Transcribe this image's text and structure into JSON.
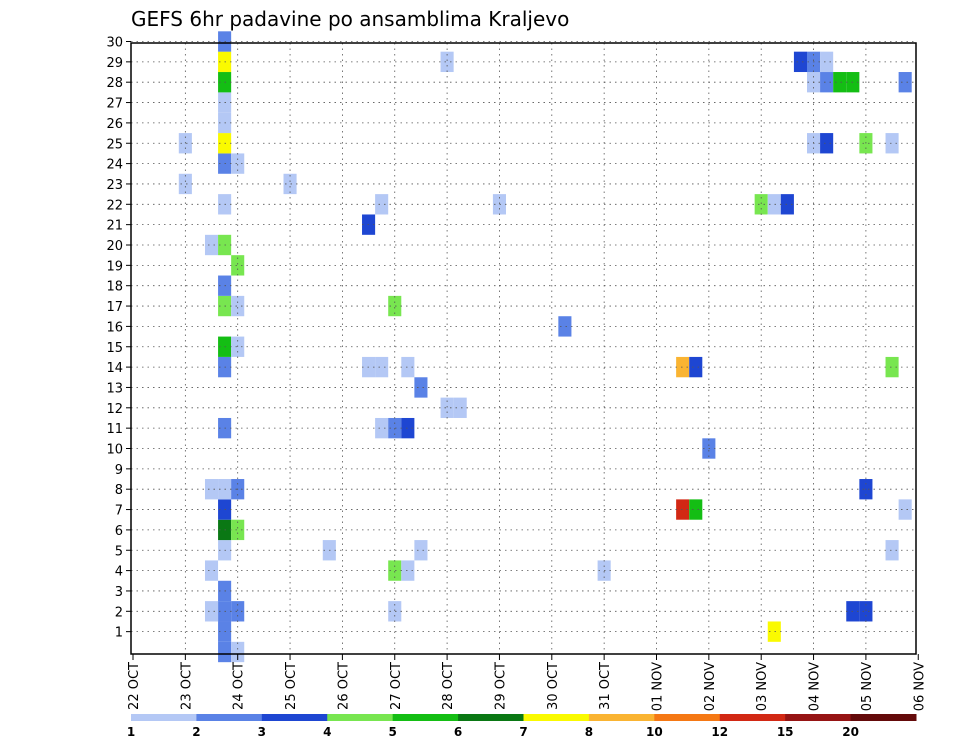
{
  "chart_data": {
    "type": "heatmap",
    "title": "GEFS 6hr padavine po ansamblima Kraljevo",
    "x_ticks": [
      "22 OCT",
      "23 OCT",
      "24 OCT",
      "25 OCT",
      "26 OCT",
      "27 OCT",
      "28 OCT",
      "29 OCT",
      "30 OCT",
      "31 OCT",
      "01 NOV",
      "02 NOV",
      "03 NOV",
      "04 NOV",
      "05 NOV",
      "06 NOV"
    ],
    "x_range_days": [
      0,
      15
    ],
    "y_ticks": [
      "1",
      "2",
      "3",
      "4",
      "5",
      "6",
      "7",
      "8",
      "9",
      "10",
      "11",
      "12",
      "13",
      "14",
      "15",
      "16",
      "17",
      "18",
      "19",
      "20",
      "21",
      "22",
      "23",
      "24",
      "25",
      "26",
      "27",
      "28",
      "29",
      "30"
    ],
    "y_range": [
      0,
      30
    ],
    "grid": true,
    "colorbar": {
      "placement": "bottom",
      "labels": [
        "1",
        "2",
        "3",
        "4",
        "5",
        "6",
        "7",
        "8",
        "10",
        "12",
        "15",
        "20"
      ],
      "colors": [
        "#b4c8f5",
        "#5a82e6",
        "#1e46d2",
        "#78e650",
        "#14be14",
        "#0a7814",
        "#fafa00",
        "#fab432",
        "#f57814",
        "#d22814",
        "#961414",
        "#640a0a"
      ]
    },
    "cells": [
      {
        "day": 1.75,
        "member": 0,
        "c": 2
      },
      {
        "day": 2.0,
        "member": 0,
        "c": 1
      },
      {
        "day": 1.75,
        "member": 1,
        "c": 2
      },
      {
        "day": 1.75,
        "member": 2,
        "c": 2
      },
      {
        "day": 1.5,
        "member": 2,
        "c": 1
      },
      {
        "day": 2.0,
        "member": 2,
        "c": 2
      },
      {
        "day": 1.75,
        "member": 3,
        "c": 2
      },
      {
        "day": 1.5,
        "member": 4,
        "c": 1
      },
      {
        "day": 1.75,
        "member": 5,
        "c": 1
      },
      {
        "day": 1.75,
        "member": 6,
        "c": 6
      },
      {
        "day": 2.0,
        "member": 6,
        "c": 4
      },
      {
        "day": 1.75,
        "member": 7,
        "c": 3
      },
      {
        "day": 1.5,
        "member": 8,
        "c": 1
      },
      {
        "day": 1.75,
        "member": 8,
        "c": 1
      },
      {
        "day": 2.0,
        "member": 8,
        "c": 2
      },
      {
        "day": 1.75,
        "member": 11,
        "c": 2
      },
      {
        "day": 1.75,
        "member": 14,
        "c": 2
      },
      {
        "day": 1.75,
        "member": 15,
        "c": 5
      },
      {
        "day": 2.0,
        "member": 15,
        "c": 1
      },
      {
        "day": 1.75,
        "member": 17,
        "c": 4
      },
      {
        "day": 2.0,
        "member": 17,
        "c": 1
      },
      {
        "day": 1.75,
        "member": 18,
        "c": 2
      },
      {
        "day": 2.0,
        "member": 19,
        "c": 4
      },
      {
        "day": 1.5,
        "member": 20,
        "c": 1
      },
      {
        "day": 1.75,
        "member": 20,
        "c": 4
      },
      {
        "day": 1.75,
        "member": 22,
        "c": 1
      },
      {
        "day": 1.0,
        "member": 23,
        "c": 1
      },
      {
        "day": 1.75,
        "member": 24,
        "c": 2
      },
      {
        "day": 2.0,
        "member": 24,
        "c": 1
      },
      {
        "day": 1.0,
        "member": 25,
        "c": 1
      },
      {
        "day": 1.75,
        "member": 25,
        "c": 7
      },
      {
        "day": 1.75,
        "member": 26,
        "c": 1
      },
      {
        "day": 1.75,
        "member": 27,
        "c": 1
      },
      {
        "day": 1.75,
        "member": 28,
        "c": 5
      },
      {
        "day": 1.75,
        "member": 29,
        "c": 7
      },
      {
        "day": 1.75,
        "member": 30,
        "c": 2
      },
      {
        "day": 3.0,
        "member": 23,
        "c": 1
      },
      {
        "day": 3.75,
        "member": 5,
        "c": 1
      },
      {
        "day": 4.5,
        "member": 14,
        "c": 1
      },
      {
        "day": 4.75,
        "member": 14,
        "c": 1
      },
      {
        "day": 4.5,
        "member": 21,
        "c": 3
      },
      {
        "day": 4.75,
        "member": 11,
        "c": 1
      },
      {
        "day": 4.75,
        "member": 22,
        "c": 1
      },
      {
        "day": 5.0,
        "member": 2,
        "c": 1
      },
      {
        "day": 5.0,
        "member": 4,
        "c": 4
      },
      {
        "day": 5.0,
        "member": 11,
        "c": 2
      },
      {
        "day": 5.0,
        "member": 17,
        "c": 4
      },
      {
        "day": 5.25,
        "member": 4,
        "c": 1
      },
      {
        "day": 5.25,
        "member": 11,
        "c": 3
      },
      {
        "day": 5.25,
        "member": 14,
        "c": 1
      },
      {
        "day": 5.5,
        "member": 5,
        "c": 1
      },
      {
        "day": 5.5,
        "member": 13,
        "c": 2
      },
      {
        "day": 6.0,
        "member": 12,
        "c": 1
      },
      {
        "day": 6.25,
        "member": 12,
        "c": 1
      },
      {
        "day": 6.0,
        "member": 29,
        "c": 1
      },
      {
        "day": 7.0,
        "member": 22,
        "c": 1
      },
      {
        "day": 8.25,
        "member": 16,
        "c": 2
      },
      {
        "day": 9.0,
        "member": 4,
        "c": 1
      },
      {
        "day": 10.5,
        "member": 7,
        "c": 10
      },
      {
        "day": 10.75,
        "member": 7,
        "c": 5
      },
      {
        "day": 10.5,
        "member": 14,
        "c": 8
      },
      {
        "day": 10.75,
        "member": 14,
        "c": 3
      },
      {
        "day": 11.0,
        "member": 10,
        "c": 2
      },
      {
        "day": 12.0,
        "member": 22,
        "c": 4
      },
      {
        "day": 12.25,
        "member": 1,
        "c": 7
      },
      {
        "day": 12.25,
        "member": 22,
        "c": 1
      },
      {
        "day": 12.5,
        "member": 22,
        "c": 3
      },
      {
        "day": 12.75,
        "member": 29,
        "c": 3
      },
      {
        "day": 13.0,
        "member": 28,
        "c": 1
      },
      {
        "day": 13.0,
        "member": 29,
        "c": 2
      },
      {
        "day": 13.0,
        "member": 25,
        "c": 1
      },
      {
        "day": 13.25,
        "member": 25,
        "c": 3
      },
      {
        "day": 13.25,
        "member": 28,
        "c": 2
      },
      {
        "day": 13.25,
        "member": 29,
        "c": 1
      },
      {
        "day": 13.5,
        "member": 28,
        "c": 5
      },
      {
        "day": 13.75,
        "member": 28,
        "c": 5
      },
      {
        "day": 13.75,
        "member": 2,
        "c": 3
      },
      {
        "day": 14.0,
        "member": 2,
        "c": 3
      },
      {
        "day": 14.0,
        "member": 8,
        "c": 3
      },
      {
        "day": 14.0,
        "member": 25,
        "c": 4
      },
      {
        "day": 14.5,
        "member": 5,
        "c": 1
      },
      {
        "day": 14.5,
        "member": 14,
        "c": 4
      },
      {
        "day": 14.5,
        "member": 25,
        "c": 1
      },
      {
        "day": 14.75,
        "member": 7,
        "c": 1
      },
      {
        "day": 14.75,
        "member": 28,
        "c": 2
      }
    ]
  }
}
